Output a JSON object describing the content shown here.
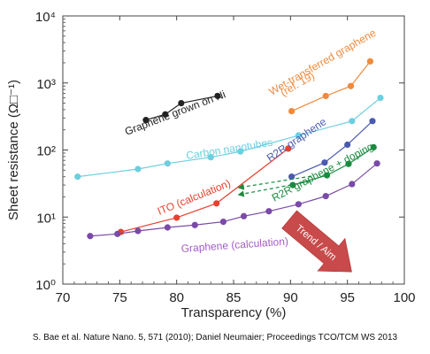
{
  "chart_data": {
    "type": "scatter",
    "xlabel": "Transparency (%)",
    "ylabel": "Sheet resistance (Ω□⁻¹)",
    "xlim": [
      70,
      100
    ],
    "ylim": [
      1,
      10000
    ],
    "yscale": "log",
    "x_ticks": [
      70,
      75,
      80,
      85,
      90,
      95,
      100
    ],
    "y_ticks": [
      {
        "value": 1,
        "label": "10⁰"
      },
      {
        "value": 10,
        "label": "10¹"
      },
      {
        "value": 100,
        "label": "10²"
      },
      {
        "value": 1000,
        "label": "10³"
      },
      {
        "value": 10000,
        "label": "10⁴"
      }
    ],
    "series": [
      {
        "name": "Graphene grown on Ni",
        "color": "#222222",
        "x": [
          77.3,
          79.0,
          80.4,
          83.6
        ],
        "y": [
          280,
          340,
          500,
          640
        ]
      },
      {
        "name": "Wet-transferred graphene (ref. 19)",
        "color": "#f08a3c",
        "x": [
          90.1,
          93.1,
          95.3,
          97.0
        ],
        "y": [
          380,
          640,
          900,
          2100
        ]
      },
      {
        "name": "Carbon nanotubes",
        "color": "#6ccfe0",
        "x": [
          71.3,
          76.6,
          79.2,
          83.0,
          85.6,
          90.7,
          95.4,
          97.9
        ],
        "y": [
          40,
          52,
          63,
          78,
          95,
          165,
          270,
          600
        ]
      },
      {
        "name": "ITO (calculation)",
        "color": "#e8402e",
        "x": [
          75.1,
          80.0,
          83.5,
          89.8
        ],
        "y": [
          6.0,
          9.8,
          16.0,
          105
        ]
      },
      {
        "name": "R2R graphene",
        "color": "#4a5ab0",
        "x": [
          90.1,
          93.0,
          95.0,
          97.2
        ],
        "y": [
          40,
          65,
          120,
          270
        ]
      },
      {
        "name": "R2R graphene + doping",
        "color": "#1a8a3e",
        "x": [
          90.2,
          93.2,
          95.1,
          97.3
        ],
        "y": [
          30,
          42,
          62,
          110
        ]
      },
      {
        "name": "Graphene (calculation)",
        "color": "#7a4aa8",
        "x": [
          72.4,
          74.8,
          76.6,
          79.2,
          81.6,
          84.1,
          85.9,
          88.1,
          90.7,
          93.1,
          95.4,
          97.6
        ],
        "y": [
          5.2,
          5.6,
          6.2,
          7.0,
          7.6,
          8.5,
          10.3,
          12.2,
          15.5,
          20.5,
          31,
          63
        ]
      }
    ],
    "annotations": [
      {
        "text": "Graphene grown on Ni",
        "color": "#222222"
      },
      {
        "text": "Wet-transferred graphene",
        "color": "#f08a3c"
      },
      {
        "text": "(ref. 19)",
        "color": "#f08a3c"
      },
      {
        "text": "Carbon nanotubes",
        "color": "#6ccfe0"
      },
      {
        "text": "ITO (calculation)",
        "color": "#e8402e"
      },
      {
        "text": "R2R graphene",
        "color": "#4a5ab0"
      },
      {
        "text": "R2R graphene + doping",
        "color": "#1a8a3e"
      },
      {
        "text": "Graphene (calculation)",
        "color": "#a35cc8"
      },
      {
        "text": "Trend / Aim",
        "color": "#ffffff",
        "bg": "#c84a4a"
      }
    ],
    "grid": false
  },
  "caption": "S. Bae et al. Nature Nano. 5, 571 (2010); Daniel Neumaier; Proceedings TCO/TCM WS 2013"
}
